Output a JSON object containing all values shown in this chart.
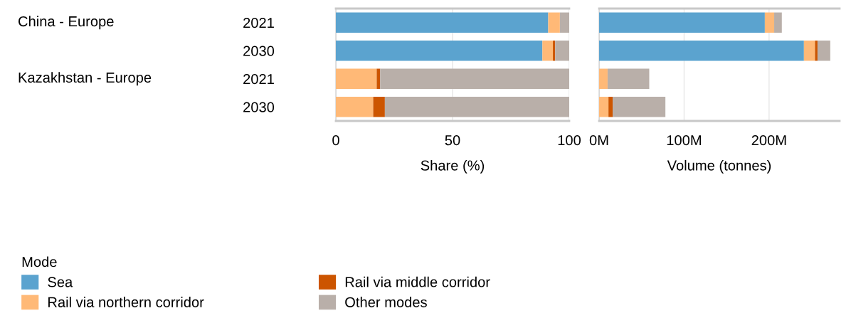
{
  "chart_data": [
    {
      "type": "bar",
      "orientation": "horizontal",
      "stacked": true,
      "categories": [
        "2021",
        "2030",
        "2021",
        "2030"
      ],
      "annotations": [
        "China - Europe",
        "Kazakhstan - Europe"
      ],
      "xlabel": "Share (%)",
      "xlim": [
        0,
        100
      ],
      "xticks": [
        0,
        50,
        100
      ],
      "grid": "x",
      "legend": "bottom left",
      "legend_title": "Mode",
      "series": [
        {
          "name": "Sea",
          "color": "#5ba3cf",
          "values": [
            91,
            88.5,
            0,
            0
          ]
        },
        {
          "name": "Rail via northern corridor",
          "color": "#ffb977",
          "values": [
            5,
            4.5,
            17.5,
            16
          ]
        },
        {
          "name": "Rail via middle corridor",
          "color": "#cc5500",
          "values": [
            0,
            1,
            1.5,
            5
          ]
        },
        {
          "name": "Other modes",
          "color": "#b9afa9",
          "values": [
            4,
            6,
            81,
            79
          ]
        }
      ]
    },
    {
      "type": "bar",
      "orientation": "horizontal",
      "stacked": true,
      "categories": [
        "2021",
        "2030",
        "2021",
        "2030"
      ],
      "tick_labels": "x",
      "xlabel": "Volume (tonnes)",
      "xlim": [
        0,
        283000000
      ],
      "xticks": [
        {
          "value": 0,
          "label": "0M"
        },
        {
          "value": 100000000,
          "label": "100M"
        },
        {
          "value": 200000000,
          "label": "200M"
        }
      ],
      "grid": "x",
      "series": [
        {
          "color": "#5ba3cf",
          "values": [
            195000000,
            241000000,
            0,
            0
          ]
        },
        {
          "color": "#ffb977",
          "values": [
            11000000,
            13000000,
            10000000,
            11000000
          ]
        },
        {
          "color": "#cc5500",
          "values": [
            0,
            3000000,
            0,
            5000000
          ]
        },
        {
          "color": "#b9afa9",
          "values": [
            9000000,
            15000000,
            49000000,
            62000000
          ]
        }
      ]
    }
  ]
}
